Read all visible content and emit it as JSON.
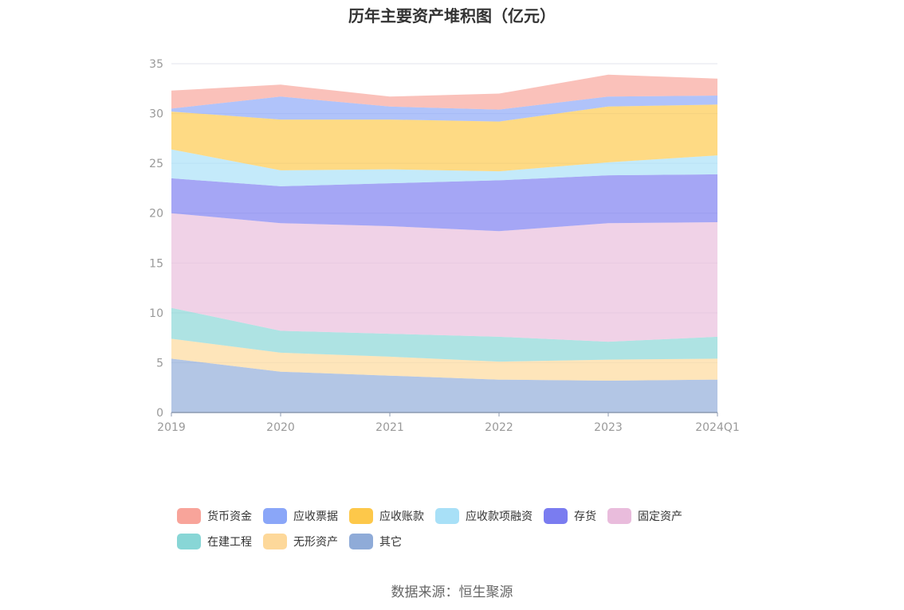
{
  "title": "历年主要资产堆积图（亿元）",
  "source": "数据来源：恒生聚源",
  "chart_data": {
    "type": "area",
    "stacked": true,
    "categories": [
      "2019",
      "2020",
      "2021",
      "2022",
      "2023",
      "2024Q1"
    ],
    "ylim": [
      0,
      35
    ],
    "yticks": [
      0,
      5,
      10,
      15,
      20,
      25,
      30,
      35
    ],
    "grid": true,
    "legend_position": "bottom",
    "series": [
      {
        "name": "其它",
        "color": "#8fabd8",
        "values": [
          5.4,
          4.1,
          3.7,
          3.3,
          3.2,
          3.3
        ]
      },
      {
        "name": "无形资产",
        "color": "#fdd89a",
        "values": [
          2.0,
          1.9,
          1.9,
          1.8,
          2.1,
          2.1
        ]
      },
      {
        "name": "在建工程",
        "color": "#88d6d6",
        "values": [
          3.1,
          2.2,
          2.3,
          2.5,
          1.8,
          2.2
        ]
      },
      {
        "name": "固定资产",
        "color": "#e9bcdc",
        "values": [
          9.5,
          10.8,
          10.8,
          10.6,
          11.9,
          11.5
        ]
      },
      {
        "name": "存货",
        "color": "#7a7cf0",
        "values": [
          3.5,
          3.7,
          4.3,
          5.1,
          4.8,
          4.8
        ]
      },
      {
        "name": "应收款项融资",
        "color": "#a8e0f7",
        "values": [
          2.9,
          1.6,
          1.4,
          0.9,
          1.3,
          1.9
        ]
      },
      {
        "name": "应收账款",
        "color": "#fdc84a",
        "values": [
          3.8,
          5.1,
          5.0,
          5.0,
          5.6,
          5.1
        ]
      },
      {
        "name": "应收票据",
        "color": "#8aa6f8",
        "values": [
          0.3,
          2.3,
          1.3,
          1.2,
          1.0,
          0.9
        ]
      },
      {
        "name": "货币资金",
        "color": "#f8a49a",
        "values": [
          1.8,
          1.2,
          1.0,
          1.6,
          2.2,
          1.7
        ]
      }
    ],
    "legend_rows": [
      [
        "货币资金",
        "应收票据",
        "应收账款",
        "应收款项融资",
        "存货",
        "固定资产"
      ],
      [
        "在建工程",
        "无形资产",
        "其它"
      ]
    ]
  }
}
